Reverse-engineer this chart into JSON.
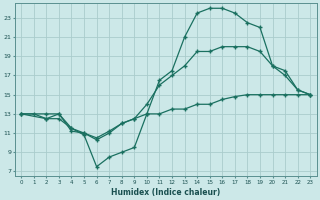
{
  "xlabel": "Humidex (Indice chaleur)",
  "bg_color": "#cce8e8",
  "grid_color": "#aacccc",
  "line_color": "#1a7060",
  "xlim": [
    -0.5,
    23.5
  ],
  "ylim": [
    6.5,
    24.5
  ],
  "xticks": [
    0,
    1,
    2,
    3,
    4,
    5,
    6,
    7,
    8,
    9,
    10,
    11,
    12,
    13,
    14,
    15,
    16,
    17,
    18,
    19,
    20,
    21,
    22,
    23
  ],
  "yticks": [
    7,
    9,
    11,
    13,
    15,
    17,
    19,
    21,
    23
  ],
  "line1_x": [
    0,
    1,
    2,
    3,
    4,
    5,
    6,
    7,
    8,
    9,
    10,
    11,
    12,
    13,
    14,
    15,
    16,
    17,
    18,
    19,
    20,
    21,
    22,
    23
  ],
  "line1_y": [
    13,
    13,
    12.5,
    13,
    11.2,
    11,
    10.5,
    11.2,
    12,
    12.5,
    13,
    13,
    13.5,
    13.5,
    14,
    14,
    14.5,
    14.8,
    15,
    15,
    15,
    15,
    15,
    15
  ],
  "line2_x": [
    0,
    2,
    3,
    4,
    5,
    6,
    7,
    8,
    9,
    10,
    11,
    12,
    13,
    14,
    15,
    16,
    17,
    18,
    19,
    20,
    21,
    22,
    23
  ],
  "line2_y": [
    13,
    12.5,
    12.5,
    11.5,
    10.8,
    7.5,
    8.5,
    9,
    9.5,
    13,
    16.5,
    17.5,
    21,
    23.5,
    24,
    24,
    23.5,
    22.5,
    22,
    18,
    17.5,
    15.5,
    15
  ],
  "line3_x": [
    0,
    2,
    3,
    4,
    5,
    6,
    7,
    8,
    9,
    10,
    11,
    12,
    13,
    14,
    15,
    16,
    17,
    18,
    19,
    20,
    21,
    22,
    23
  ],
  "line3_y": [
    13,
    13,
    13,
    11.5,
    11,
    10.3,
    11,
    12,
    12.5,
    14,
    16,
    17,
    18,
    19.5,
    19.5,
    20,
    20,
    20,
    19.5,
    18,
    17,
    15.5,
    15
  ]
}
